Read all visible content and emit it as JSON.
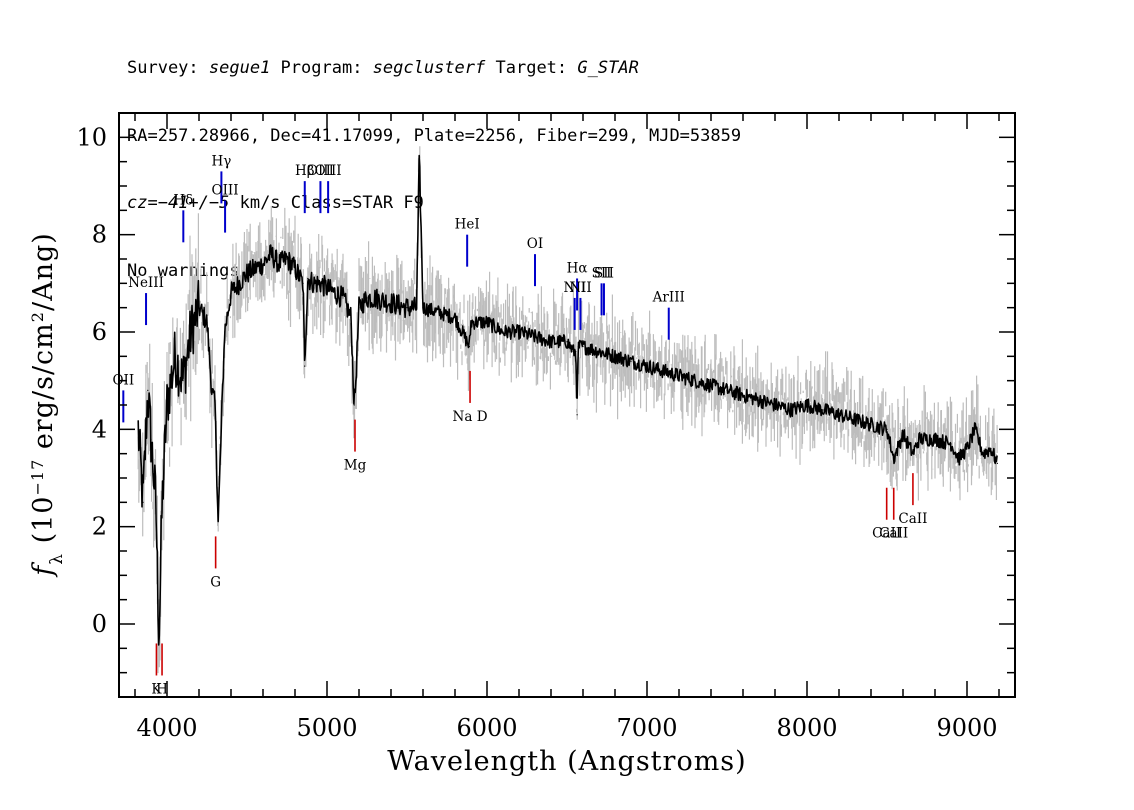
{
  "header": {
    "line1": {
      "survey_label": "Survey: ",
      "survey": "segue1",
      "program_label": " Program: ",
      "program": "segclusterf",
      "target_label": " Target: ",
      "target": "G_STAR"
    },
    "line2": "RA=257.28966, Dec=41.17099, Plate=2256, Fiber=299, MJD=53859",
    "line3": {
      "cz": "cz=−41+/−5",
      "rest": " km/s Class=STAR F9"
    },
    "line4": "No warnings."
  },
  "chart_data": {
    "type": "line",
    "xlabel": "Wavelength (Angstroms)",
    "ylabel": "fλ (10⁻¹⁷ erg/s/cm²/Ang)",
    "xlim": [
      3700,
      9300
    ],
    "ylim": [
      -1.5,
      10.5
    ],
    "x_ticks": [
      4000,
      5000,
      6000,
      7000,
      8000,
      9000
    ],
    "y_ticks": [
      0,
      2,
      4,
      6,
      8,
      10
    ],
    "series": [
      {
        "role": "flux",
        "color": "#000000",
        "x": [
          3820,
          3850,
          3880,
          3900,
          3930,
          3950,
          3970,
          4000,
          4050,
          4100,
          4150,
          4200,
          4250,
          4280,
          4300,
          4320,
          4360,
          4400,
          4450,
          4500,
          4550,
          4600,
          4650,
          4700,
          4750,
          4800,
          4850,
          4860,
          4880,
          4920,
          4960,
          5000,
          5050,
          5100,
          5150,
          5170,
          5180,
          5200,
          5250,
          5300,
          5400,
          5500,
          5560,
          5577,
          5600,
          5700,
          5800,
          5890,
          5900,
          6000,
          6100,
          6200,
          6300,
          6400,
          6500,
          6540,
          6555,
          6563,
          6570,
          6600,
          6700,
          6800,
          6900,
          7000,
          7100,
          7200,
          7300,
          7400,
          7500,
          7600,
          7700,
          7800,
          7900,
          8000,
          8100,
          8200,
          8300,
          8400,
          8500,
          8542,
          8600,
          8662,
          8700,
          8800,
          8900,
          8950,
          9000,
          9050,
          9100,
          9150,
          9190
        ],
        "y": [
          4.0,
          2.5,
          4.8,
          3.8,
          2.5,
          -0.3,
          2.5,
          4.5,
          5.5,
          5.0,
          6.0,
          6.5,
          6.2,
          4.8,
          4.5,
          2.1,
          6.0,
          6.8,
          7.0,
          7.2,
          7.3,
          7.4,
          7.6,
          7.4,
          7.5,
          7.3,
          7.0,
          5.3,
          7.1,
          7.0,
          7.0,
          6.9,
          6.8,
          6.7,
          6.3,
          4.5,
          5.0,
          6.5,
          6.7,
          6.7,
          6.6,
          6.5,
          6.5,
          9.6,
          6.5,
          6.4,
          6.3,
          5.7,
          6.2,
          6.2,
          6.0,
          6.0,
          5.9,
          5.8,
          5.8,
          5.6,
          5.6,
          4.3,
          5.7,
          5.7,
          5.6,
          5.5,
          5.4,
          5.3,
          5.2,
          5.1,
          5.0,
          4.9,
          4.8,
          4.7,
          4.6,
          4.5,
          4.4,
          4.5,
          4.4,
          4.3,
          4.2,
          4.1,
          4.0,
          3.4,
          3.9,
          3.5,
          3.8,
          3.8,
          3.7,
          3.4,
          3.6,
          4.0,
          3.5,
          3.6,
          3.3
        ]
      },
      {
        "role": "noise-envelope",
        "color": "#bdbdbd"
      }
    ],
    "emission_lines": [
      {
        "label": "OII",
        "x": 3727,
        "y": 4.8,
        "color": "#0000cc"
      },
      {
        "label": "NeIII",
        "x": 3869,
        "y": 6.8,
        "color": "#0000cc"
      },
      {
        "label": "Hδ",
        "x": 4102,
        "y": 8.5,
        "color": "#0000cc"
      },
      {
        "label": "Hγ",
        "x": 4340,
        "y": 9.3,
        "color": "#0000cc"
      },
      {
        "label": "OIII",
        "x": 4363,
        "y": 8.7,
        "color": "#0000cc"
      },
      {
        "label": "Hβ",
        "x": 4861,
        "y": 9.1,
        "color": "#0000cc"
      },
      {
        "label": "OIII",
        "x": 4959,
        "y": 9.1,
        "color": "#0000cc"
      },
      {
        "label": "OIII",
        "x": 5007,
        "y": 9.1,
        "color": "#0000cc"
      },
      {
        "label": "HeI",
        "x": 5876,
        "y": 8.0,
        "color": "#0000cc"
      },
      {
        "label": "OI",
        "x": 6300,
        "y": 7.6,
        "color": "#0000cc"
      },
      {
        "label": "NII",
        "x": 6548,
        "y": 6.7,
        "color": "#0000cc"
      },
      {
        "label": "Hα",
        "x": 6563,
        "y": 7.1,
        "color": "#0000cc"
      },
      {
        "label": "NII",
        "x": 6584,
        "y": 6.7,
        "color": "#0000cc"
      },
      {
        "label": "SII",
        "x": 6716,
        "y": 7.0,
        "color": "#0000cc"
      },
      {
        "label": "SII",
        "x": 6731,
        "y": 7.0,
        "color": "#0000cc"
      },
      {
        "label": "ArIII",
        "x": 7136,
        "y": 6.5,
        "color": "#0000cc"
      }
    ],
    "absorption_lines": [
      {
        "label": "K",
        "x": 3934,
        "y": -0.4,
        "color": "#cc0000"
      },
      {
        "label": "H",
        "x": 3969,
        "y": -0.4,
        "color": "#cc0000"
      },
      {
        "label": "G",
        "x": 4304,
        "y": 1.8,
        "color": "#cc0000"
      },
      {
        "label": "Mg",
        "x": 5175,
        "y": 4.2,
        "color": "#cc0000"
      },
      {
        "label": "Na D",
        "x": 5894,
        "y": 5.2,
        "color": "#cc0000"
      },
      {
        "label": "CaII",
        "x": 8498,
        "y": 2.8,
        "color": "#cc0000"
      },
      {
        "label": "CaII",
        "x": 8542,
        "y": 2.8,
        "color": "#cc0000"
      },
      {
        "label": "CaII",
        "x": 8662,
        "y": 3.1,
        "color": "#cc0000"
      }
    ]
  }
}
